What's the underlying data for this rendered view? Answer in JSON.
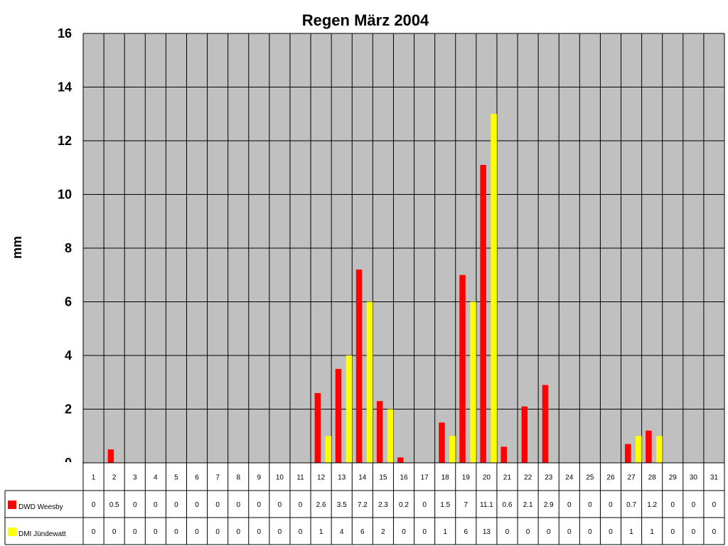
{
  "chart_data": {
    "type": "bar",
    "title": "Regen März 2004",
    "ylabel": "mm",
    "xlabel": "",
    "ylim": [
      0,
      16
    ],
    "yticks": [
      0,
      2,
      4,
      6,
      8,
      10,
      12,
      14,
      16
    ],
    "grid": true,
    "legend": "left-table",
    "categories": [
      "1",
      "2",
      "3",
      "4",
      "5",
      "6",
      "7",
      "8",
      "9",
      "10",
      "11",
      "12",
      "13",
      "14",
      "15",
      "16",
      "17",
      "18",
      "19",
      "20",
      "21",
      "22",
      "23",
      "24",
      "25",
      "26",
      "27",
      "28",
      "29",
      "30",
      "31"
    ],
    "series": [
      {
        "name": "DWD Weesby",
        "color": "#ff0000",
        "values": [
          0,
          0.5,
          0,
          0,
          0,
          0,
          0,
          0,
          0,
          0,
          0,
          2.6,
          3.5,
          7.2,
          2.3,
          0.2,
          0,
          1.5,
          7,
          11.1,
          0.6,
          2.1,
          2.9,
          0,
          0,
          0,
          0.7,
          1.2,
          0,
          0,
          0
        ]
      },
      {
        "name": "DMI Jündewatt",
        "color": "#ffff00",
        "values": [
          0,
          0,
          0,
          0,
          0,
          0,
          0,
          0,
          0,
          0,
          0,
          1,
          4,
          6,
          2,
          0,
          0,
          1,
          6,
          13,
          0,
          0,
          0,
          0,
          0,
          0,
          1,
          1,
          0,
          0,
          0
        ]
      }
    ]
  },
  "colors": {
    "plot_background": "#c0c0c0",
    "grid": "#000000"
  }
}
